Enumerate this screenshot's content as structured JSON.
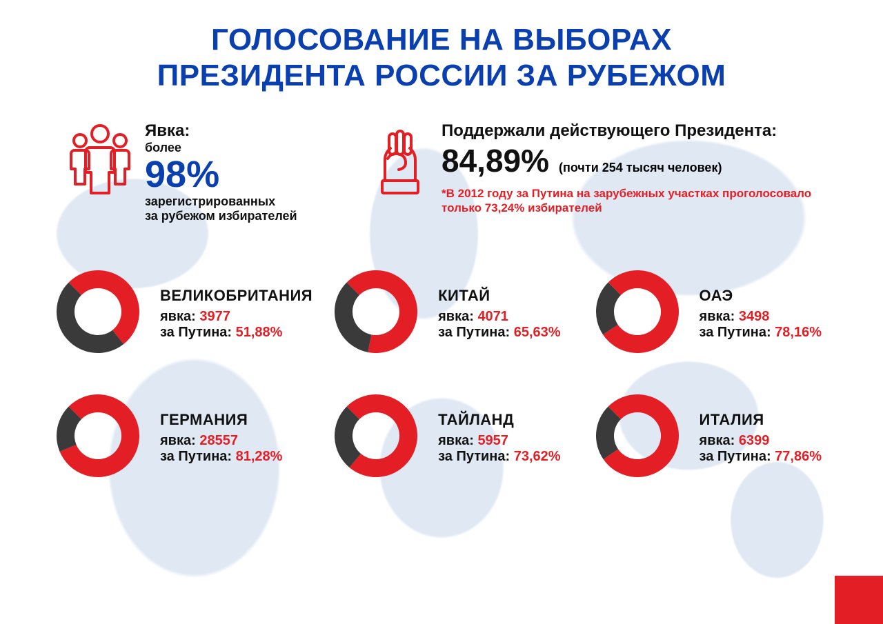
{
  "colors": {
    "blue": "#0a3fb0",
    "red": "#e31e24",
    "dark": "#3a3a3a",
    "text": "#111111",
    "map": "#c7d7ec",
    "white": "#ffffff"
  },
  "title_line1": "ГОЛОСОВАНИЕ НА ВЫБОРАХ",
  "title_line2": "ПРЕЗИДЕНТА РОССИИ ЗА РУБЕЖОМ",
  "hero_left": {
    "label": "Явка:",
    "sub": "более",
    "value": "98%",
    "desc1": "зарегистрированных",
    "desc2": "за рубежом избирателей"
  },
  "hero_right": {
    "label": "Поддержали действующего Президента:",
    "value": "84,89%",
    "paren": "(почти 254 тысяч человек)",
    "foot_prefix": "*В 2012 году за Путина на зарубежных участках проголосовало только ",
    "foot_value": "73,24%",
    "foot_suffix": " избирателей"
  },
  "donut": {
    "outer_radius": 60,
    "inner_radius": 34,
    "for_color": "#e31e24",
    "against_color": "#3a3a3a",
    "start_angle_deg": -135
  },
  "countries": [
    {
      "name": "ВЕЛИКОБРИТАНИЯ",
      "turnout_label": "явка:",
      "turnout": "3977",
      "for_label": "за Путина:",
      "for_pct_text": "51,88%",
      "for_pct": 51.88
    },
    {
      "name": "КИТАЙ",
      "turnout_label": "явка:",
      "turnout": "4071",
      "for_label": "за Путина:",
      "for_pct_text": "65,63%",
      "for_pct": 65.63
    },
    {
      "name": "ОАЭ",
      "turnout_label": "явка:",
      "turnout": "3498",
      "for_label": "за Путина:",
      "for_pct_text": "78,16%",
      "for_pct": 78.16
    },
    {
      "name": "ГЕРМАНИЯ",
      "turnout_label": "явка:",
      "turnout": "28557",
      "for_label": "за Путина:",
      "for_pct_text": "81,28%",
      "for_pct": 81.28
    },
    {
      "name": "ТАЙЛАНД",
      "turnout_label": "явка:",
      "turnout": "5957",
      "for_label": "за Путина:",
      "for_pct_text": "73,62%",
      "for_pct": 73.62
    },
    {
      "name": "ИТАЛИЯ",
      "turnout_label": "явка:",
      "turnout": "6399",
      "for_label": "за Путина:",
      "for_pct_text": "77,86%",
      "for_pct": 77.86
    }
  ]
}
